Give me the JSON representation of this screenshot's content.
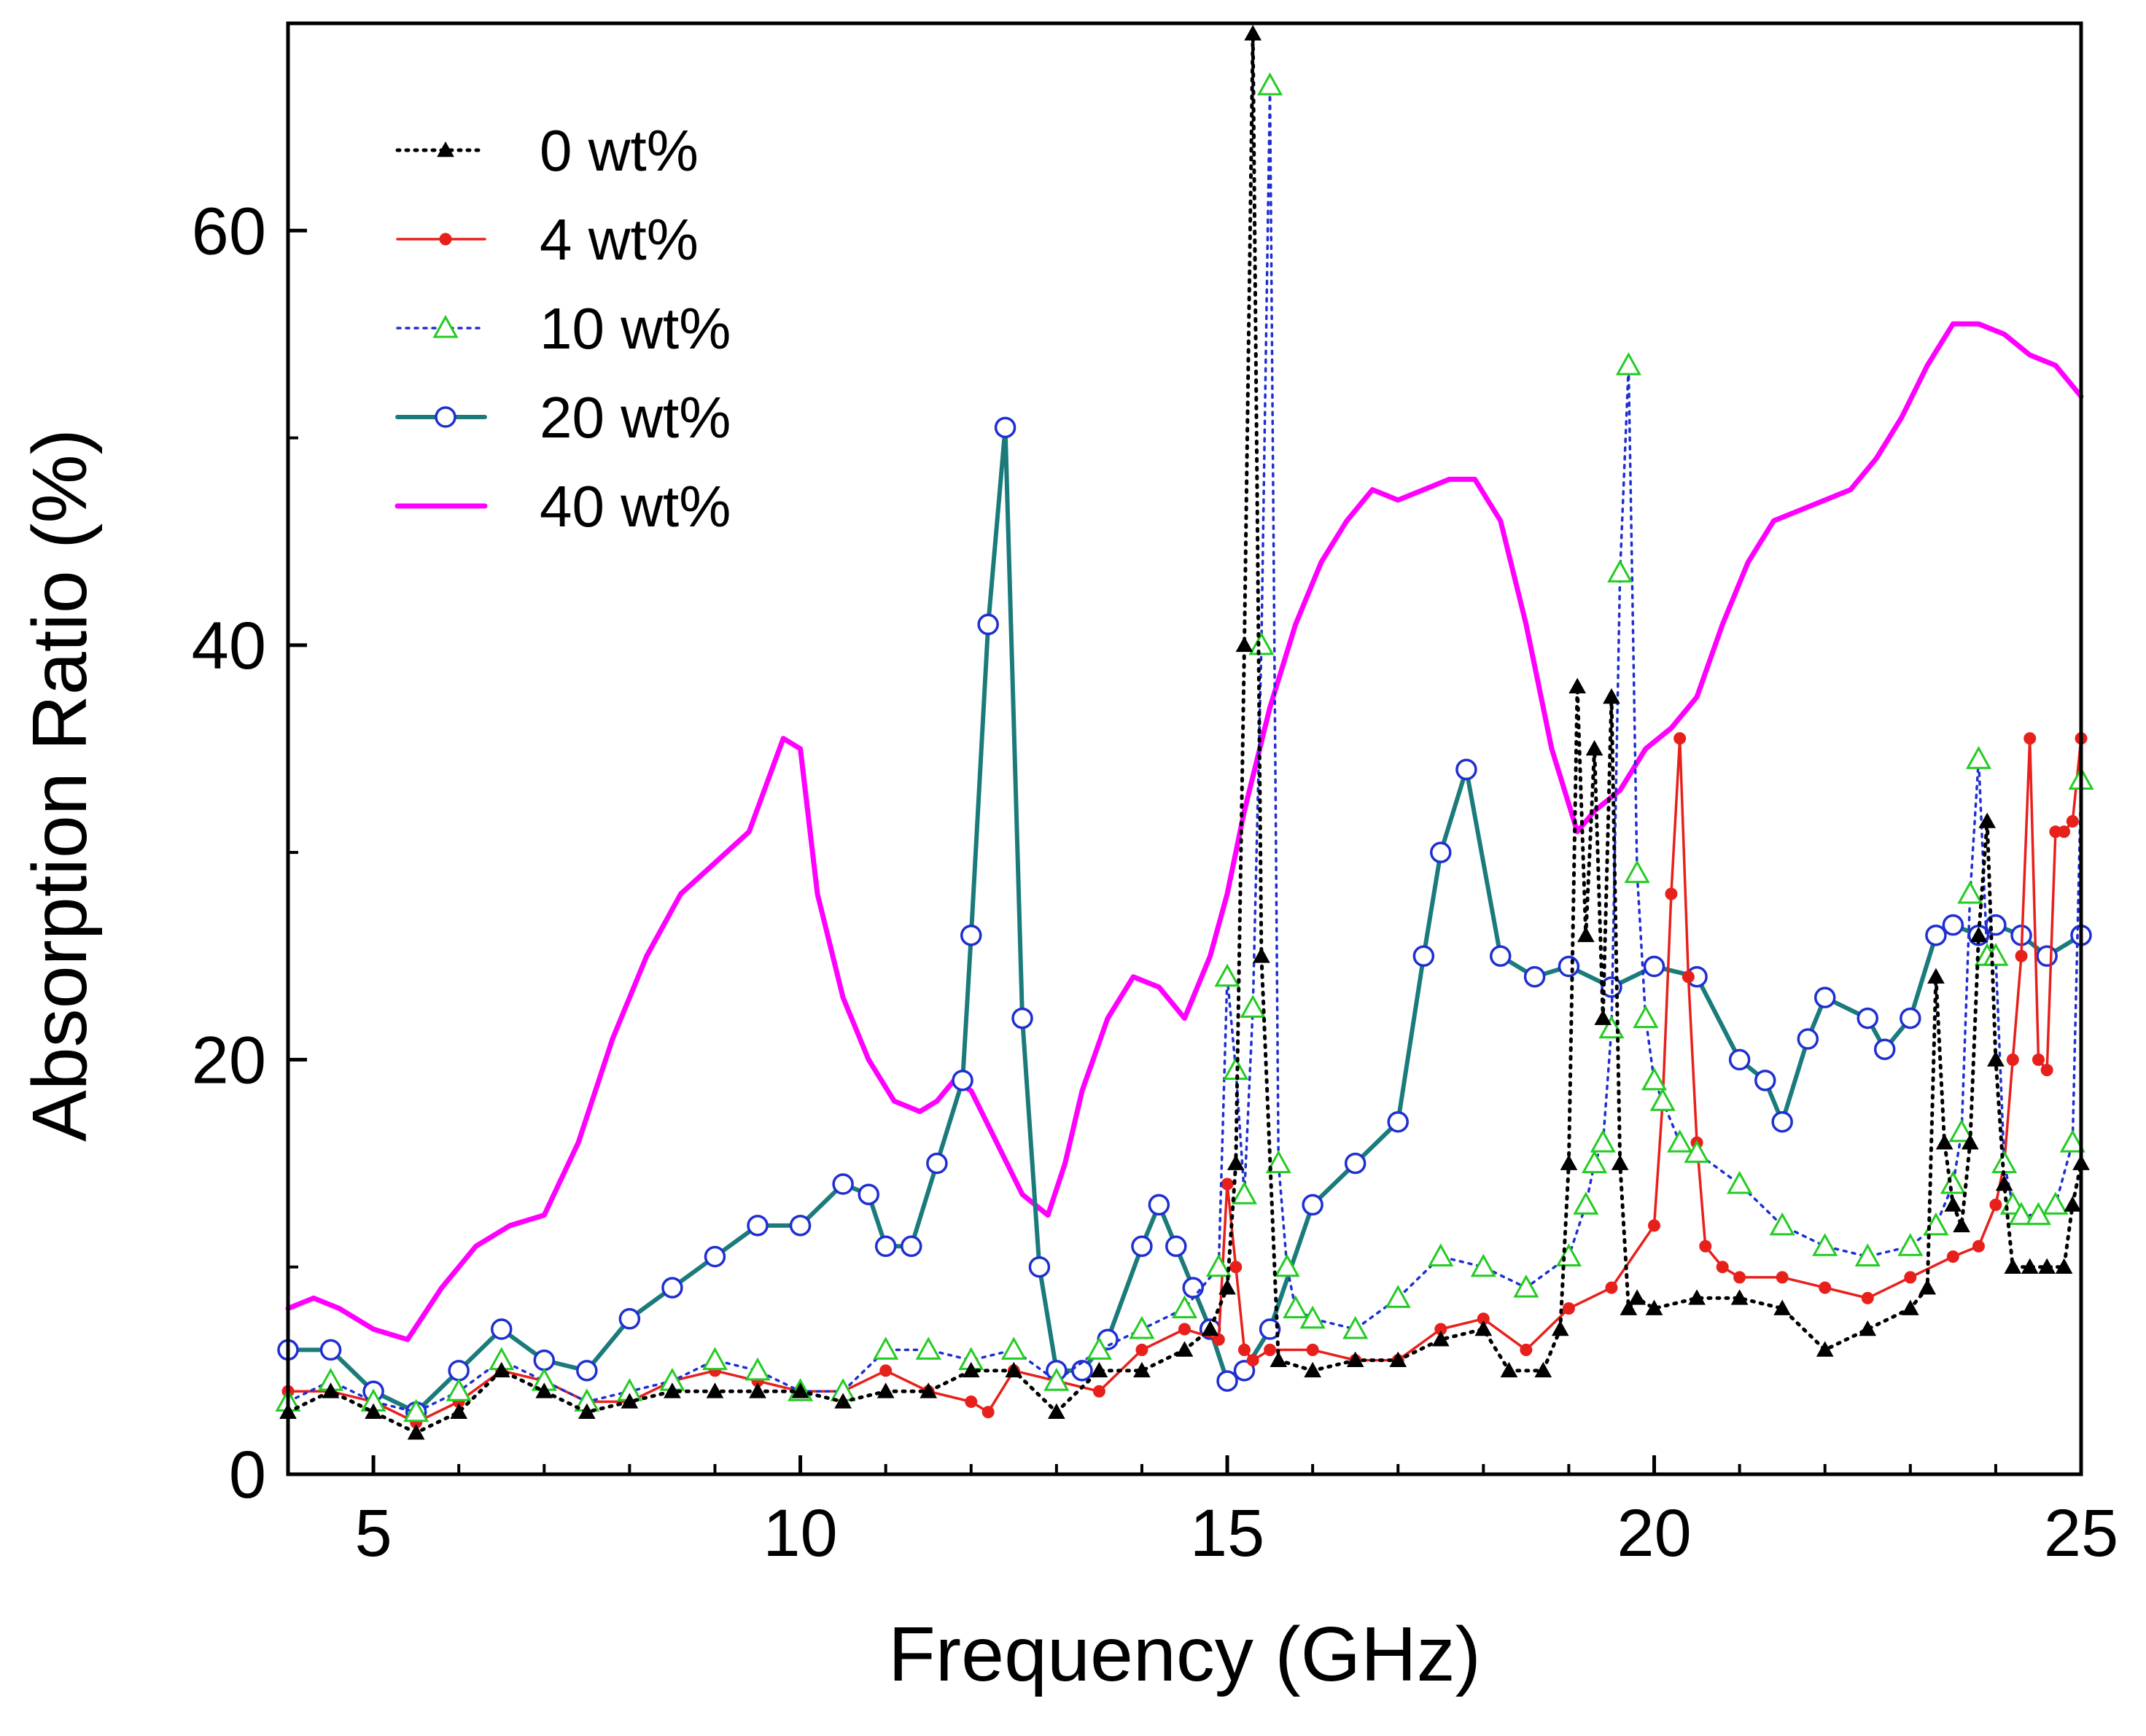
{
  "chart_data": {
    "type": "line",
    "title": "",
    "xlabel": "Frequency (GHz)",
    "ylabel": "Absorption Ratio (%)",
    "xlim": [
      4,
      25
    ],
    "ylim": [
      0,
      70
    ],
    "x_ticks": [
      5,
      10,
      15,
      20,
      25
    ],
    "y_ticks": [
      0,
      20,
      40,
      60
    ],
    "x_tick_labels": [
      "5",
      "10",
      "15",
      "20",
      "25"
    ],
    "y_tick_labels": [
      "0",
      "20",
      "40",
      "60"
    ],
    "grid": false,
    "legend_position": "top-left",
    "series": [
      {
        "name": "0 wt%",
        "color": "#000000",
        "line_style": "dotted",
        "marker": "filled-triangle",
        "x": [
          4.0,
          4.5,
          5.0,
          5.5,
          6.0,
          6.5,
          7.0,
          7.5,
          8.0,
          8.5,
          9.0,
          9.5,
          10.0,
          10.5,
          11.0,
          11.5,
          12.0,
          12.5,
          13.0,
          13.5,
          14.0,
          14.5,
          14.8,
          15.0,
          15.1,
          15.2,
          15.3,
          15.4,
          15.6,
          16.0,
          16.5,
          17.0,
          17.5,
          18.0,
          18.3,
          18.7,
          18.9,
          19.0,
          19.1,
          19.2,
          19.3,
          19.4,
          19.5,
          19.6,
          19.7,
          19.8,
          20.0,
          20.5,
          21.0,
          21.5,
          22.0,
          22.5,
          23.0,
          23.2,
          23.3,
          23.4,
          23.5,
          23.6,
          23.7,
          23.8,
          23.9,
          24.0,
          24.1,
          24.2,
          24.4,
          24.6,
          24.8,
          24.9,
          25.0
        ],
        "y": [
          3,
          4,
          3,
          2,
          3,
          5,
          4,
          3,
          3.5,
          4,
          4,
          4,
          4,
          3.5,
          4,
          4,
          5,
          5,
          3,
          5,
          5,
          6,
          7,
          9,
          15,
          40,
          69.5,
          25,
          5.5,
          5,
          5.5,
          5.5,
          6.5,
          7,
          5,
          5,
          7,
          15,
          38,
          26,
          35,
          22,
          37.5,
          15,
          8,
          8.5,
          8,
          8.5,
          8.5,
          8,
          6,
          7,
          8,
          9,
          24,
          16,
          13,
          12,
          16,
          26,
          31.5,
          20,
          14,
          10,
          10,
          10,
          10,
          13,
          15
        ]
      },
      {
        "name": "4 wt%",
        "color": "#e8201c",
        "line_style": "solid",
        "marker": "filled-circle",
        "x": [
          4.0,
          4.5,
          5.0,
          5.5,
          6.0,
          6.5,
          7.0,
          7.5,
          8.0,
          8.5,
          9.0,
          9.5,
          10.0,
          10.5,
          11.0,
          11.5,
          12.0,
          12.2,
          12.5,
          13.0,
          13.5,
          14.0,
          14.5,
          14.9,
          15.0,
          15.1,
          15.2,
          15.3,
          15.5,
          16.0,
          16.5,
          17.0,
          17.5,
          18.0,
          18.5,
          19.0,
          19.5,
          20.0,
          20.1,
          20.2,
          20.3,
          20.4,
          20.5,
          20.6,
          20.8,
          21.0,
          21.5,
          22.0,
          22.5,
          23.0,
          23.5,
          23.8,
          24.0,
          24.1,
          24.2,
          24.3,
          24.4,
          24.5,
          24.6,
          24.7,
          24.8,
          24.9,
          25.0
        ],
        "y": [
          4,
          4,
          3.5,
          2.5,
          3.5,
          5,
          4.5,
          3.5,
          3.5,
          4.5,
          5,
          4.5,
          4,
          4,
          5,
          4,
          3.5,
          3,
          5,
          4.5,
          4,
          6,
          7,
          6.5,
          14,
          10,
          6,
          5.5,
          6,
          6,
          5.5,
          5.5,
          7,
          7.5,
          6,
          8,
          9,
          12,
          18,
          28,
          35.5,
          24,
          16,
          11,
          10,
          9.5,
          9.5,
          9,
          8.5,
          9.5,
          10.5,
          11,
          13,
          15,
          20,
          25,
          35.5,
          20,
          19.5,
          31,
          31,
          31.5,
          35.5
        ]
      },
      {
        "name": "10 wt%",
        "color": "#22cc22",
        "line_style": "dotted",
        "line_color": "#1f2fd0",
        "marker": "open-triangle",
        "x": [
          4.0,
          4.5,
          5.0,
          5.5,
          6.0,
          6.5,
          7.0,
          7.5,
          8.0,
          8.5,
          9.0,
          9.5,
          10.0,
          10.5,
          11.0,
          11.5,
          12.0,
          12.5,
          13.0,
          13.5,
          14.0,
          14.5,
          14.9,
          15.0,
          15.1,
          15.2,
          15.3,
          15.4,
          15.5,
          15.6,
          15.7,
          15.8,
          16.0,
          16.5,
          17.0,
          17.5,
          18.0,
          18.5,
          19.0,
          19.2,
          19.3,
          19.4,
          19.5,
          19.6,
          19.7,
          19.8,
          19.9,
          20.0,
          20.1,
          20.3,
          20.5,
          21.0,
          21.5,
          22.0,
          22.5,
          23.0,
          23.3,
          23.5,
          23.6,
          23.7,
          23.8,
          23.9,
          24.0,
          24.1,
          24.2,
          24.3,
          24.5,
          24.7,
          24.9,
          25.0
        ],
        "y": [
          3.5,
          4.5,
          3.5,
          3,
          4,
          5.5,
          4.5,
          3.5,
          4,
          4.5,
          5.5,
          5,
          4,
          4,
          6,
          6,
          5.5,
          6,
          4.5,
          6,
          7,
          8,
          10,
          24,
          19.5,
          13.5,
          22.5,
          40,
          67,
          15,
          10,
          8,
          7.5,
          7,
          8.5,
          10.5,
          10,
          9,
          10.5,
          13,
          15,
          16,
          21.5,
          43.5,
          53.5,
          29,
          22,
          19,
          18,
          16,
          15.5,
          14,
          12,
          11,
          10.5,
          11,
          12,
          14,
          16.5,
          28,
          34.5,
          25,
          25,
          15,
          13,
          12.5,
          12.5,
          13,
          16,
          33.5
        ]
      },
      {
        "name": "20 wt%",
        "color": "#1b7b7b",
        "marker_edge_color": "#1f2fd0",
        "line_style": "solid",
        "marker": "open-circle",
        "x": [
          4.0,
          4.5,
          5.0,
          5.5,
          6.0,
          6.5,
          7.0,
          7.5,
          8.0,
          8.5,
          9.0,
          9.5,
          10.0,
          10.5,
          10.8,
          11.0,
          11.3,
          11.6,
          11.9,
          12.0,
          12.2,
          12.4,
          12.6,
          12.8,
          13.0,
          13.3,
          13.6,
          14.0,
          14.2,
          14.4,
          14.6,
          14.8,
          15.0,
          15.2,
          15.5,
          16.0,
          16.5,
          17.0,
          17.3,
          17.5,
          17.8,
          18.2,
          18.6,
          19.0,
          19.5,
          20.0,
          20.5,
          21.0,
          21.3,
          21.5,
          21.8,
          22.0,
          22.5,
          22.7,
          23.0,
          23.3,
          23.5,
          23.8,
          24.0,
          24.3,
          24.6,
          25.0
        ],
        "y": [
          6,
          6,
          4,
          3,
          5,
          7,
          5.5,
          5,
          7.5,
          9,
          10.5,
          12,
          12,
          14,
          13.5,
          11,
          11,
          15,
          19,
          26,
          41,
          50.5,
          22,
          10,
          5,
          5,
          6.5,
          11,
          13,
          11,
          9,
          7,
          4.5,
          5,
          7,
          13,
          15,
          17,
          25,
          30,
          34,
          25,
          24,
          24.5,
          23.5,
          24.5,
          24,
          20,
          19,
          17,
          21,
          23,
          22,
          20.5,
          22,
          26,
          26.5,
          26,
          26.5,
          26,
          25,
          26
        ]
      },
      {
        "name": "40 wt%",
        "color": "#ff00ff",
        "line_style": "solid",
        "marker": "none",
        "x": [
          4.0,
          4.3,
          4.6,
          5.0,
          5.4,
          5.8,
          6.2,
          6.6,
          7.0,
          7.4,
          7.8,
          8.2,
          8.6,
          9.0,
          9.4,
          9.8,
          10.0,
          10.2,
          10.5,
          10.8,
          11.1,
          11.4,
          11.6,
          11.8,
          12.0,
          12.3,
          12.6,
          12.9,
          13.1,
          13.3,
          13.6,
          13.9,
          14.2,
          14.5,
          14.6,
          14.8,
          15.0,
          15.2,
          15.5,
          15.8,
          16.1,
          16.4,
          16.7,
          17.0,
          17.3,
          17.6,
          17.9,
          18.2,
          18.5,
          18.8,
          19.1,
          19.3,
          19.6,
          19.9,
          20.2,
          20.5,
          20.8,
          21.1,
          21.4,
          21.7,
          22.0,
          22.3,
          22.6,
          22.9,
          23.2,
          23.5,
          23.8,
          24.1,
          24.4,
          24.7,
          25.0
        ],
        "y": [
          8,
          8.5,
          8,
          7,
          6.5,
          9,
          11,
          12,
          12.5,
          16,
          21,
          25,
          28,
          29.5,
          31,
          35.5,
          35,
          28,
          23,
          20,
          18,
          17.5,
          18,
          19,
          18.5,
          16,
          13.5,
          12.5,
          15,
          18.5,
          22,
          24,
          23.5,
          22,
          23,
          25,
          28,
          32,
          37,
          41,
          44,
          46,
          47.5,
          47,
          47.5,
          48,
          48,
          46,
          41,
          35,
          31,
          32,
          33,
          35,
          36,
          37.5,
          41,
          44,
          46,
          46.5,
          47,
          47.5,
          49,
          51,
          53.5,
          55.5,
          55.5,
          55,
          54,
          53.5,
          52
        ]
      }
    ]
  }
}
